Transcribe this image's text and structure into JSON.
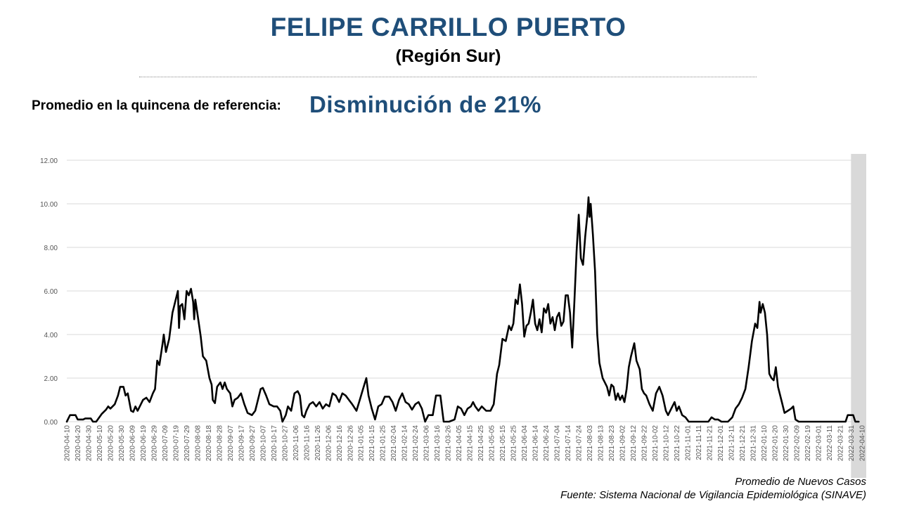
{
  "header": {
    "title": "FELIPE CARRILLO PUERTO",
    "subtitle": "(Región Sur)",
    "ref_label": "Promedio en la quincena de referencia:",
    "ref_value": "Disminución de 21%"
  },
  "footer": {
    "legend_note": "Promedio de Nuevos Casos",
    "source": "Fuente: Sistema Nacional de Vigilancia Epidemiológica (SINAVE)"
  },
  "colors": {
    "title": "#1f4e79",
    "line": "#000000",
    "grid": "#d9d9d9",
    "highlight": "#d9d9d9"
  },
  "chart_data": {
    "type": "line",
    "title": "",
    "xlabel": "",
    "ylabel": "",
    "ylim": [
      0,
      12
    ],
    "yticks": [
      "0.00",
      "2.00",
      "4.00",
      "6.00",
      "8.00",
      "10.00",
      "12.00"
    ],
    "grid": true,
    "x_start": "2020-04-10",
    "x_end": "2022-04-14",
    "xtick_labels": [
      "2020-04-10",
      "2020-04-20",
      "2020-04-30",
      "2020-05-10",
      "2020-05-20",
      "2020-05-30",
      "2020-06-09",
      "2020-06-19",
      "2020-06-29",
      "2020-07-09",
      "2020-07-19",
      "2020-07-29",
      "2020-08-08",
      "2020-08-18",
      "2020-08-28",
      "2020-09-07",
      "2020-09-17",
      "2020-09-27",
      "2020-10-07",
      "2020-10-17",
      "2020-10-27",
      "2020-11-06",
      "2020-11-16",
      "2020-11-26",
      "2020-12-06",
      "2020-12-16",
      "2020-12-26",
      "2021-01-05",
      "2021-01-15",
      "2021-01-25",
      "2021-02-04",
      "2021-02-14",
      "2021-02-24",
      "2021-03-06",
      "2021-03-16",
      "2021-03-26",
      "2021-04-05",
      "2021-04-15",
      "2021-04-25",
      "2021-05-05",
      "2021-05-15",
      "2021-05-25",
      "2021-06-04",
      "2021-06-14",
      "2021-06-24",
      "2021-07-04",
      "2021-07-14",
      "2021-07-24",
      "2021-08-03",
      "2021-08-13",
      "2021-08-23",
      "2021-09-02",
      "2021-09-12",
      "2021-09-22",
      "2021-10-02",
      "2021-10-12",
      "2021-10-22",
      "2021-11-01",
      "2021-11-11",
      "2021-11-21",
      "2021-12-01",
      "2021-12-11",
      "2021-12-21",
      "2021-12-31",
      "2022-01-10",
      "2022-01-20",
      "2022-01-30",
      "2022-02-09",
      "2022-02-19",
      "2022-03-01",
      "2022-03-11",
      "2022-03-21",
      "2022-03-31",
      "2022-04-10"
    ],
    "highlight_range": [
      "2022-03-31",
      "2022-04-14"
    ],
    "series": [
      {
        "points": [
          [
            "2020-04-10",
            0.0
          ],
          [
            "2020-04-13",
            0.3
          ],
          [
            "2020-04-18",
            0.3
          ],
          [
            "2020-04-20",
            0.1
          ],
          [
            "2020-04-25",
            0.1
          ],
          [
            "2020-04-27",
            0.15
          ],
          [
            "2020-05-02",
            0.15
          ],
          [
            "2020-05-04",
            0.0
          ],
          [
            "2020-05-07",
            0.0
          ],
          [
            "2020-05-12",
            0.35
          ],
          [
            "2020-05-16",
            0.55
          ],
          [
            "2020-05-18",
            0.7
          ],
          [
            "2020-05-20",
            0.6
          ],
          [
            "2020-05-24",
            0.8
          ],
          [
            "2020-05-27",
            1.2
          ],
          [
            "2020-05-29",
            1.6
          ],
          [
            "2020-06-01",
            1.6
          ],
          [
            "2020-06-03",
            1.2
          ],
          [
            "2020-06-05",
            1.3
          ],
          [
            "2020-06-08",
            0.5
          ],
          [
            "2020-06-10",
            0.45
          ],
          [
            "2020-06-12",
            0.7
          ],
          [
            "2020-06-14",
            0.5
          ],
          [
            "2020-06-16",
            0.7
          ],
          [
            "2020-06-19",
            1.0
          ],
          [
            "2020-06-22",
            1.1
          ],
          [
            "2020-06-25",
            0.9
          ],
          [
            "2020-06-28",
            1.3
          ],
          [
            "2020-06-30",
            1.5
          ],
          [
            "2020-07-02",
            2.8
          ],
          [
            "2020-07-04",
            2.6
          ],
          [
            "2020-07-07",
            3.6
          ],
          [
            "2020-07-08",
            4.0
          ],
          [
            "2020-07-10",
            3.2
          ],
          [
            "2020-07-13",
            3.8
          ],
          [
            "2020-07-16",
            5.0
          ],
          [
            "2020-07-19",
            5.6
          ],
          [
            "2020-07-21",
            6.0
          ],
          [
            "2020-07-22",
            4.3
          ],
          [
            "2020-07-23",
            5.3
          ],
          [
            "2020-07-25",
            5.4
          ],
          [
            "2020-07-27",
            4.7
          ],
          [
            "2020-07-29",
            6.0
          ],
          [
            "2020-07-31",
            5.8
          ],
          [
            "2020-08-02",
            6.1
          ],
          [
            "2020-08-04",
            5.5
          ],
          [
            "2020-08-05",
            4.7
          ],
          [
            "2020-08-06",
            5.6
          ],
          [
            "2020-08-09",
            4.6
          ],
          [
            "2020-08-11",
            3.9
          ],
          [
            "2020-08-13",
            3.0
          ],
          [
            "2020-08-16",
            2.8
          ],
          [
            "2020-08-19",
            2.0
          ],
          [
            "2020-08-21",
            1.7
          ],
          [
            "2020-08-22",
            1.0
          ],
          [
            "2020-08-24",
            0.85
          ],
          [
            "2020-08-26",
            1.6
          ],
          [
            "2020-08-29",
            1.8
          ],
          [
            "2020-08-31",
            1.5
          ],
          [
            "2020-09-02",
            1.8
          ],
          [
            "2020-09-04",
            1.5
          ],
          [
            "2020-09-07",
            1.3
          ],
          [
            "2020-09-09",
            0.7
          ],
          [
            "2020-09-11",
            1.0
          ],
          [
            "2020-09-14",
            1.1
          ],
          [
            "2020-09-17",
            1.3
          ],
          [
            "2020-09-20",
            0.8
          ],
          [
            "2020-09-23",
            0.4
          ],
          [
            "2020-09-27",
            0.3
          ],
          [
            "2020-09-30",
            0.5
          ],
          [
            "2020-10-02",
            0.9
          ],
          [
            "2020-10-05",
            1.5
          ],
          [
            "2020-10-07",
            1.55
          ],
          [
            "2020-10-10",
            1.2
          ],
          [
            "2020-10-13",
            0.8
          ],
          [
            "2020-10-17",
            0.7
          ],
          [
            "2020-10-20",
            0.7
          ],
          [
            "2020-10-23",
            0.5
          ],
          [
            "2020-10-25",
            0.0
          ],
          [
            "2020-10-28",
            0.3
          ],
          [
            "2020-10-30",
            0.7
          ],
          [
            "2020-11-02",
            0.5
          ],
          [
            "2020-11-05",
            1.3
          ],
          [
            "2020-11-08",
            1.4
          ],
          [
            "2020-11-10",
            1.2
          ],
          [
            "2020-11-12",
            0.3
          ],
          [
            "2020-11-14",
            0.2
          ],
          [
            "2020-11-16",
            0.5
          ],
          [
            "2020-11-19",
            0.8
          ],
          [
            "2020-11-22",
            0.9
          ],
          [
            "2020-11-25",
            0.7
          ],
          [
            "2020-11-28",
            0.9
          ],
          [
            "2020-12-01",
            0.6
          ],
          [
            "2020-12-04",
            0.8
          ],
          [
            "2020-12-07",
            0.7
          ],
          [
            "2020-12-10",
            1.3
          ],
          [
            "2020-12-13",
            1.2
          ],
          [
            "2020-12-16",
            0.9
          ],
          [
            "2020-12-19",
            1.3
          ],
          [
            "2020-12-22",
            1.2
          ],
          [
            "2020-12-25",
            1.0
          ],
          [
            "2020-12-28",
            0.8
          ],
          [
            "2021-01-01",
            0.5
          ],
          [
            "2021-01-04",
            1.0
          ],
          [
            "2021-01-07",
            1.5
          ],
          [
            "2021-01-10",
            2.0
          ],
          [
            "2021-01-12",
            1.2
          ],
          [
            "2021-01-15",
            0.6
          ],
          [
            "2021-01-18",
            0.1
          ],
          [
            "2021-01-21",
            0.7
          ],
          [
            "2021-01-24",
            0.8
          ],
          [
            "2021-01-27",
            1.15
          ],
          [
            "2021-01-31",
            1.15
          ],
          [
            "2021-02-03",
            0.9
          ],
          [
            "2021-02-06",
            0.5
          ],
          [
            "2021-02-09",
            1.0
          ],
          [
            "2021-02-12",
            1.3
          ],
          [
            "2021-02-15",
            0.9
          ],
          [
            "2021-02-18",
            0.8
          ],
          [
            "2021-02-21",
            0.55
          ],
          [
            "2021-02-24",
            0.8
          ],
          [
            "2021-02-27",
            0.9
          ],
          [
            "2021-03-02",
            0.6
          ],
          [
            "2021-03-05",
            0.0
          ],
          [
            "2021-03-08",
            0.3
          ],
          [
            "2021-03-12",
            0.3
          ],
          [
            "2021-03-15",
            1.2
          ],
          [
            "2021-03-19",
            1.2
          ],
          [
            "2021-03-22",
            0.0
          ],
          [
            "2021-03-27",
            0.0
          ],
          [
            "2021-04-01",
            0.1
          ],
          [
            "2021-04-04",
            0.7
          ],
          [
            "2021-04-07",
            0.6
          ],
          [
            "2021-04-10",
            0.3
          ],
          [
            "2021-04-13",
            0.6
          ],
          [
            "2021-04-16",
            0.7
          ],
          [
            "2021-04-18",
            0.9
          ],
          [
            "2021-04-20",
            0.7
          ],
          [
            "2021-04-23",
            0.5
          ],
          [
            "2021-04-26",
            0.7
          ],
          [
            "2021-04-30",
            0.5
          ],
          [
            "2021-05-04",
            0.5
          ],
          [
            "2021-05-07",
            0.8
          ],
          [
            "2021-05-10",
            2.2
          ],
          [
            "2021-05-12",
            2.6
          ],
          [
            "2021-05-15",
            3.8
          ],
          [
            "2021-05-18",
            3.7
          ],
          [
            "2021-05-21",
            4.4
          ],
          [
            "2021-05-23",
            4.2
          ],
          [
            "2021-05-25",
            4.5
          ],
          [
            "2021-05-27",
            5.6
          ],
          [
            "2021-05-29",
            5.4
          ],
          [
            "2021-05-31",
            6.3
          ],
          [
            "2021-06-02",
            5.4
          ],
          [
            "2021-06-04",
            3.9
          ],
          [
            "2021-06-06",
            4.4
          ],
          [
            "2021-06-08",
            4.5
          ],
          [
            "2021-06-10",
            5.0
          ],
          [
            "2021-06-12",
            5.6
          ],
          [
            "2021-06-14",
            4.5
          ],
          [
            "2021-06-16",
            4.2
          ],
          [
            "2021-06-18",
            4.7
          ],
          [
            "2021-06-20",
            4.1
          ],
          [
            "2021-06-22",
            5.2
          ],
          [
            "2021-06-24",
            5.0
          ],
          [
            "2021-06-26",
            5.4
          ],
          [
            "2021-06-28",
            4.5
          ],
          [
            "2021-06-30",
            4.8
          ],
          [
            "2021-07-02",
            4.2
          ],
          [
            "2021-07-04",
            4.8
          ],
          [
            "2021-07-06",
            5.0
          ],
          [
            "2021-07-08",
            4.4
          ],
          [
            "2021-07-10",
            4.6
          ],
          [
            "2021-07-12",
            5.8
          ],
          [
            "2021-07-14",
            5.8
          ],
          [
            "2021-07-16",
            5.0
          ],
          [
            "2021-07-18",
            3.4
          ],
          [
            "2021-07-20",
            5.5
          ],
          [
            "2021-07-22",
            7.8
          ],
          [
            "2021-07-24",
            9.5
          ],
          [
            "2021-07-26",
            7.5
          ],
          [
            "2021-07-28",
            7.2
          ],
          [
            "2021-07-30",
            8.5
          ],
          [
            "2021-08-01",
            9.5
          ],
          [
            "2021-08-02",
            10.3
          ],
          [
            "2021-08-03",
            9.4
          ],
          [
            "2021-08-04",
            10.0
          ],
          [
            "2021-08-06",
            8.6
          ],
          [
            "2021-08-08",
            6.9
          ],
          [
            "2021-08-10",
            4.0
          ],
          [
            "2021-08-12",
            2.7
          ],
          [
            "2021-08-15",
            2.0
          ],
          [
            "2021-08-17",
            1.8
          ],
          [
            "2021-08-19",
            1.6
          ],
          [
            "2021-08-21",
            1.2
          ],
          [
            "2021-08-23",
            1.7
          ],
          [
            "2021-08-25",
            1.6
          ],
          [
            "2021-08-27",
            1.0
          ],
          [
            "2021-08-29",
            1.3
          ],
          [
            "2021-08-31",
            1.0
          ],
          [
            "2021-09-02",
            1.2
          ],
          [
            "2021-09-04",
            0.9
          ],
          [
            "2021-09-06",
            1.5
          ],
          [
            "2021-09-08",
            2.5
          ],
          [
            "2021-09-10",
            3.0
          ],
          [
            "2021-09-13",
            3.6
          ],
          [
            "2021-09-15",
            2.8
          ],
          [
            "2021-09-18",
            2.4
          ],
          [
            "2021-09-20",
            1.5
          ],
          [
            "2021-09-22",
            1.3
          ],
          [
            "2021-09-24",
            1.2
          ],
          [
            "2021-09-27",
            0.8
          ],
          [
            "2021-09-30",
            0.5
          ],
          [
            "2021-10-03",
            1.3
          ],
          [
            "2021-10-06",
            1.6
          ],
          [
            "2021-10-09",
            1.2
          ],
          [
            "2021-10-12",
            0.5
          ],
          [
            "2021-10-14",
            0.3
          ],
          [
            "2021-10-17",
            0.6
          ],
          [
            "2021-10-20",
            0.9
          ],
          [
            "2021-10-22",
            0.5
          ],
          [
            "2021-10-24",
            0.7
          ],
          [
            "2021-10-27",
            0.3
          ],
          [
            "2021-10-30",
            0.2
          ],
          [
            "2021-11-02",
            0.0
          ],
          [
            "2021-11-20",
            0.0
          ],
          [
            "2021-11-23",
            0.2
          ],
          [
            "2021-11-26",
            0.1
          ],
          [
            "2021-11-29",
            0.1
          ],
          [
            "2021-12-02",
            0.0
          ],
          [
            "2021-12-08",
            0.0
          ],
          [
            "2021-12-12",
            0.2
          ],
          [
            "2021-12-15",
            0.6
          ],
          [
            "2021-12-18",
            0.8
          ],
          [
            "2021-12-21",
            1.1
          ],
          [
            "2021-12-24",
            1.5
          ],
          [
            "2021-12-27",
            2.5
          ],
          [
            "2021-12-30",
            3.7
          ],
          [
            "2022-01-02",
            4.5
          ],
          [
            "2022-01-04",
            4.3
          ],
          [
            "2022-01-06",
            5.5
          ],
          [
            "2022-01-07",
            5.0
          ],
          [
            "2022-01-09",
            5.4
          ],
          [
            "2022-01-11",
            5.0
          ],
          [
            "2022-01-13",
            4.0
          ],
          [
            "2022-01-15",
            2.2
          ],
          [
            "2022-01-17",
            2.0
          ],
          [
            "2022-01-19",
            1.9
          ],
          [
            "2022-01-21",
            2.5
          ],
          [
            "2022-01-23",
            1.6
          ],
          [
            "2022-01-26",
            1.0
          ],
          [
            "2022-01-29",
            0.4
          ],
          [
            "2022-02-01",
            0.5
          ],
          [
            "2022-02-04",
            0.6
          ],
          [
            "2022-02-06",
            0.7
          ],
          [
            "2022-02-08",
            0.1
          ],
          [
            "2022-02-11",
            0.0
          ],
          [
            "2022-03-26",
            0.0
          ],
          [
            "2022-03-28",
            0.3
          ],
          [
            "2022-04-02",
            0.3
          ],
          [
            "2022-04-04",
            0.0
          ],
          [
            "2022-04-07",
            0.0
          ]
        ]
      }
    ]
  }
}
